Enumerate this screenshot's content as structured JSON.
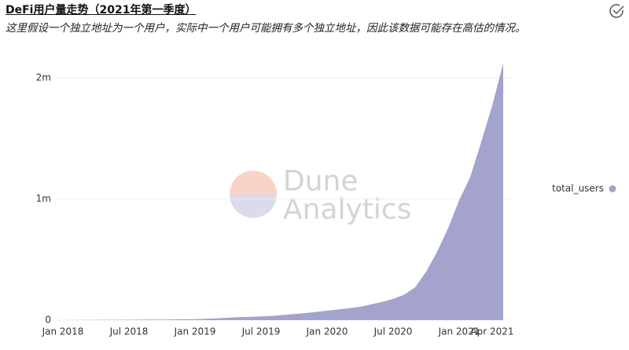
{
  "chart_data": {
    "type": "area",
    "title": "DeFi用户量走势（2021年第一季度）",
    "subtitle": "这里假设一个独立地址为一个用户，实际中一个用户可能拥有多个独立地址，因此该数据可能存在高估的情况。",
    "watermark": [
      "Dune",
      "Analytics"
    ],
    "x": [
      "2018-01",
      "2018-02",
      "2018-03",
      "2018-04",
      "2018-05",
      "2018-06",
      "2018-07",
      "2018-08",
      "2018-09",
      "2018-10",
      "2018-11",
      "2018-12",
      "2019-01",
      "2019-02",
      "2019-03",
      "2019-04",
      "2019-05",
      "2019-06",
      "2019-07",
      "2019-08",
      "2019-09",
      "2019-10",
      "2019-11",
      "2019-12",
      "2020-01",
      "2020-02",
      "2020-03",
      "2020-04",
      "2020-05",
      "2020-06",
      "2020-07",
      "2020-08",
      "2020-09",
      "2020-10",
      "2020-11",
      "2020-12",
      "2021-01",
      "2021-02",
      "2021-03",
      "2021-04",
      "2021-05"
    ],
    "series": [
      {
        "name": "total_users",
        "color": "#a3a3cd",
        "values": [
          0,
          1000,
          1500,
          2000,
          2500,
          3000,
          3500,
          4000,
          4500,
          5000,
          6000,
          7000,
          8000,
          11000,
          15000,
          20000,
          24000,
          27000,
          30000,
          35000,
          42000,
          50000,
          58000,
          67000,
          78000,
          88000,
          98000,
          110000,
          130000,
          150000,
          175000,
          210000,
          270000,
          400000,
          565000,
          760000,
          990000,
          1180000,
          1470000,
          1770000,
          2120000
        ]
      }
    ],
    "xlim": [
      "2018-01",
      "2021-05"
    ],
    "xticks": [
      {
        "value": "2018-01",
        "label": "Jan 2018"
      },
      {
        "value": "2018-07",
        "label": "Jul 2018"
      },
      {
        "value": "2019-01",
        "label": "Jan 2019"
      },
      {
        "value": "2019-07",
        "label": "Jul 2019"
      },
      {
        "value": "2020-01",
        "label": "Jan 2020"
      },
      {
        "value": "2020-07",
        "label": "Jul 2020"
      },
      {
        "value": "2021-01",
        "label": "Jan 2021"
      },
      {
        "value": "2021-04",
        "label": "Apr 2021"
      }
    ],
    "ylim": [
      0,
      2000000
    ],
    "yticks": [
      0,
      {
        "value": 1000000,
        "label": "1m"
      },
      {
        "value": 2000000,
        "label": "2m"
      }
    ],
    "grid": true,
    "legend": "right"
  }
}
